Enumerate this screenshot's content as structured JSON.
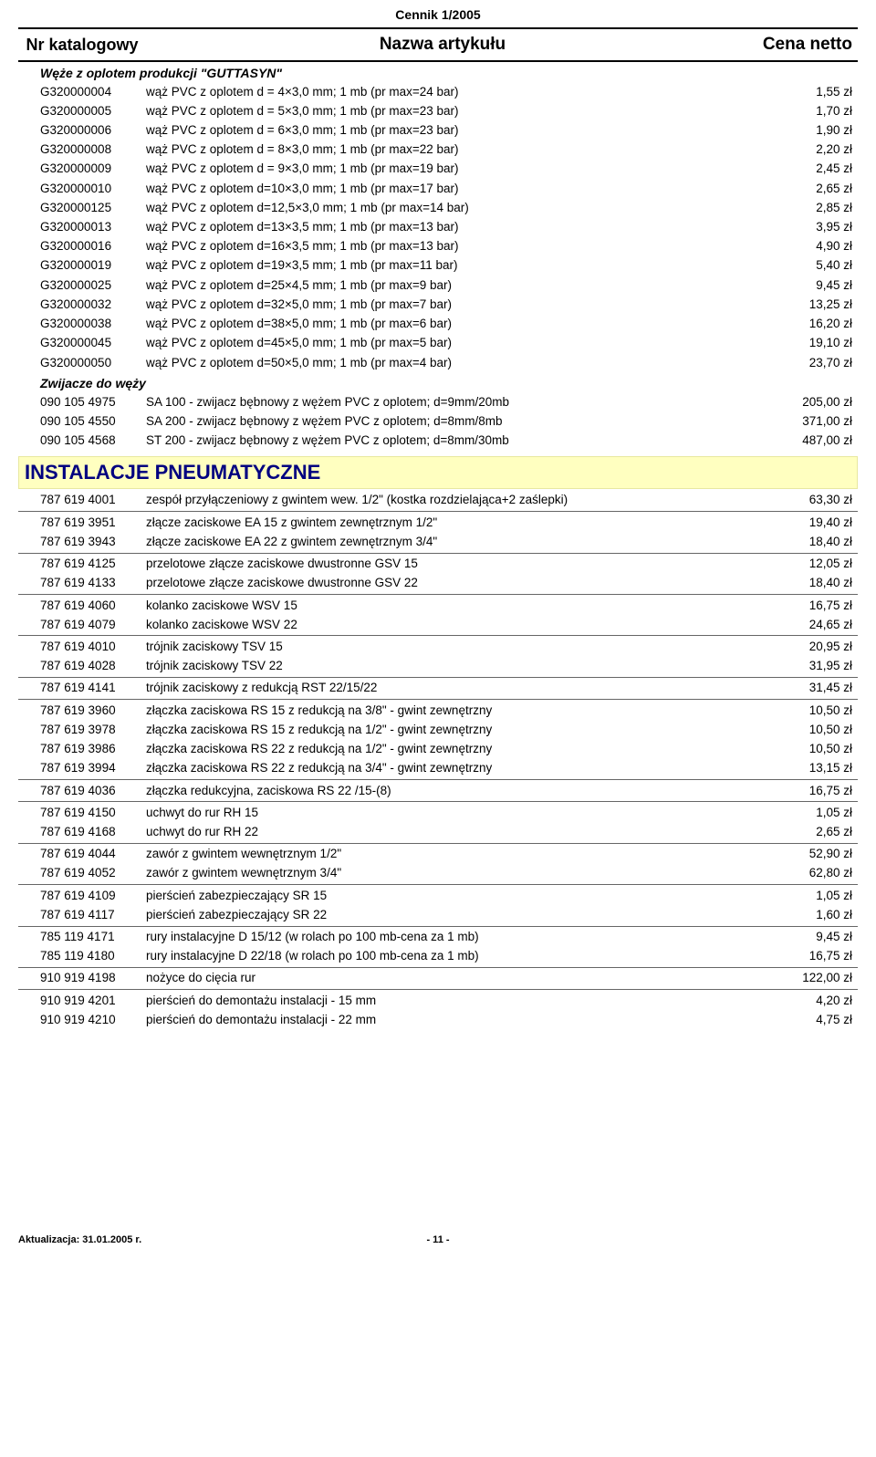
{
  "header": "Cennik 1/2005",
  "columns": {
    "code": "Nr katalogowy",
    "name": "Nazwa artykułu",
    "price": "Cena netto"
  },
  "sub1": "Węże z oplotem produkcji \"GUTTASYN\"",
  "rows1": [
    {
      "code": "G320000004",
      "name": "wąż PVC z oplotem  d = 4×3,0 mm; 1 mb (pr max=24 bar)",
      "price": "1,55 zł"
    },
    {
      "code": "G320000005",
      "name": "wąż PVC z oplotem  d = 5×3,0 mm; 1 mb (pr max=23 bar)",
      "price": "1,70 zł"
    },
    {
      "code": "G320000006",
      "name": "wąż PVC z oplotem  d = 6×3,0 mm; 1 mb (pr max=23 bar)",
      "price": "1,90 zł"
    },
    {
      "code": "G320000008",
      "name": "wąż PVC z oplotem  d = 8×3,0 mm; 1 mb (pr max=22 bar)",
      "price": "2,20 zł"
    },
    {
      "code": "G320000009",
      "name": "wąż PVC z oplotem  d = 9×3,0 mm; 1 mb (pr max=19 bar)",
      "price": "2,45 zł"
    },
    {
      "code": "G320000010",
      "name": "wąż PVC z oplotem  d=10×3,0 mm; 1 mb (pr max=17 bar)",
      "price": "2,65 zł"
    },
    {
      "code": "G320000125",
      "name": "wąż PVC z oplotem  d=12,5×3,0 mm; 1 mb (pr max=14 bar)",
      "price": "2,85 zł"
    },
    {
      "code": "G320000013",
      "name": "wąż PVC z oplotem  d=13×3,5 mm; 1 mb (pr max=13 bar)",
      "price": "3,95 zł"
    },
    {
      "code": "G320000016",
      "name": "wąż PVC z oplotem  d=16×3,5 mm; 1 mb (pr max=13 bar)",
      "price": "4,90 zł"
    },
    {
      "code": "G320000019",
      "name": "wąż PVC z oplotem  d=19×3,5 mm; 1 mb (pr max=11 bar)",
      "price": "5,40 zł"
    },
    {
      "code": "G320000025",
      "name": "wąż PVC z oplotem  d=25×4,5 mm; 1 mb (pr max=9 bar)",
      "price": "9,45 zł"
    },
    {
      "code": "G320000032",
      "name": "wąż PVC z oplotem  d=32×5,0 mm; 1 mb (pr max=7 bar)",
      "price": "13,25 zł"
    },
    {
      "code": "G320000038",
      "name": "wąż PVC z oplotem  d=38×5,0 mm; 1 mb (pr max=6 bar)",
      "price": "16,20 zł"
    },
    {
      "code": "G320000045",
      "name": "wąż PVC z oplotem  d=45×5,0 mm; 1 mb (pr max=5 bar)",
      "price": "19,10 zł"
    },
    {
      "code": "G320000050",
      "name": "wąż PVC z oplotem  d=50×5,0 mm; 1 mb (pr max=4 bar)",
      "price": "23,70 zł"
    }
  ],
  "sub2": "Zwijacze do węży",
  "rows2": [
    {
      "code": "090 105 4975",
      "name": "SA 100 - zwijacz bębnowy z wężem PVC z oplotem; d=9mm/20mb",
      "price": "205,00 zł"
    },
    {
      "code": "090 105 4550",
      "name": "SA 200 - zwijacz bębnowy z wężem PVC z oplotem; d=8mm/8mb",
      "price": "371,00 zł"
    },
    {
      "code": "090 105 4568",
      "name": "ST 200 - zwijacz bębnowy z wężem PVC z oplotem; d=8mm/30mb",
      "price": "487,00 zł"
    }
  ],
  "section_title": "INSTALACJE  PNEUMATYCZNE",
  "groups3": [
    [
      {
        "code": "787 619 4001",
        "name": "zespół  przyłączeniowy  z gwintem  wew. 1/2\" (kostka rozdzielająca+2 zaślepki)",
        "price": "63,30 zł"
      }
    ],
    [
      {
        "code": "787 619 3951",
        "name": "złącze zaciskowe EA 15 z gwintem zewnętrznym  1/2\"",
        "price": "19,40 zł"
      },
      {
        "code": "787 619 3943",
        "name": "złącze zaciskowe EA 22 z gwintem zewnętrznym  3/4\"",
        "price": "18,40 zł"
      }
    ],
    [
      {
        "code": "787 619 4125",
        "name": "przelotowe złącze zaciskowe dwustronne GSV 15",
        "price": "12,05 zł"
      },
      {
        "code": "787 619 4133",
        "name": "przelotowe złącze zaciskowe dwustronne GSV 22",
        "price": "18,40 zł"
      }
    ],
    [
      {
        "code": "787 619 4060",
        "name": "kolanko zaciskowe WSV 15",
        "price": "16,75 zł"
      },
      {
        "code": "787 619 4079",
        "name": "kolanko zaciskowe WSV 22",
        "price": "24,65 zł"
      }
    ],
    [
      {
        "code": "787 619 4010",
        "name": "trójnik zaciskowy TSV 15",
        "price": "20,95 zł"
      },
      {
        "code": "787 619 4028",
        "name": "trójnik zaciskowy TSV 22",
        "price": "31,95 zł"
      }
    ],
    [
      {
        "code": "787 619 4141",
        "name": "trójnik zaciskowy z redukcją RST 22/15/22",
        "price": "31,45 zł"
      }
    ],
    [
      {
        "code": "787 619 3960",
        "name": "złączka zaciskowa RS 15 z redukcją na 3/8\" - gwint zewnętrzny",
        "price": "10,50 zł"
      },
      {
        "code": "787 619 3978",
        "name": "złączka zaciskowa RS 15 z redukcją na 1/2\" - gwint zewnętrzny",
        "price": "10,50 zł"
      },
      {
        "code": "787 619 3986",
        "name": "złączka zaciskowa RS 22 z redukcją na 1/2\" - gwint zewnętrzny",
        "price": "10,50 zł"
      },
      {
        "code": "787 619 3994",
        "name": "złączka zaciskowa RS 22 z redukcją na 3/4\" - gwint zewnętrzny",
        "price": "13,15 zł"
      }
    ],
    [
      {
        "code": "787 619 4036",
        "name": "złączka redukcyjna, zaciskowa RS 22 /15-(8)",
        "price": "16,75 zł"
      }
    ],
    [
      {
        "code": "787 619 4150",
        "name": "uchwyt do rur RH 15",
        "price": "1,05 zł"
      },
      {
        "code": "787 619 4168",
        "name": "uchwyt do rur RH 22",
        "price": "2,65 zł"
      }
    ],
    [
      {
        "code": "787 619 4044",
        "name": "zawór z gwintem wewnętrznym 1/2\"",
        "price": "52,90 zł"
      },
      {
        "code": "787 619 4052",
        "name": "zawór z gwintem wewnętrznym 3/4\"",
        "price": "62,80 zł"
      }
    ],
    [
      {
        "code": "787 619 4109",
        "name": "pierścień zabezpieczający SR 15",
        "price": "1,05 zł"
      },
      {
        "code": "787 619 4117",
        "name": "pierścień zabezpieczający SR 22",
        "price": "1,60 zł"
      }
    ],
    [
      {
        "code": "785 119 4171",
        "name": "rury instalacyjne D 15/12 (w rolach po 100 mb-cena za 1 mb)",
        "price": "9,45 zł"
      },
      {
        "code": "785 119 4180",
        "name": "rury instalacyjne D 22/18 (w rolach po 100 mb-cena za 1 mb)",
        "price": "16,75 zł"
      }
    ],
    [
      {
        "code": "910 919 4198",
        "name": "nożyce do cięcia rur",
        "price": "122,00 zł"
      }
    ],
    [
      {
        "code": "910 919 4201",
        "name": "pierścień do demontażu instalacji - 15 mm",
        "price": "4,20 zł"
      },
      {
        "code": "910 919 4210",
        "name": "pierścień do demontażu instalacji - 22 mm",
        "price": "4,75 zł"
      }
    ]
  ],
  "footer": {
    "left": "Aktualizacja: 31.01.2005 r.",
    "center": "- 11 -"
  }
}
